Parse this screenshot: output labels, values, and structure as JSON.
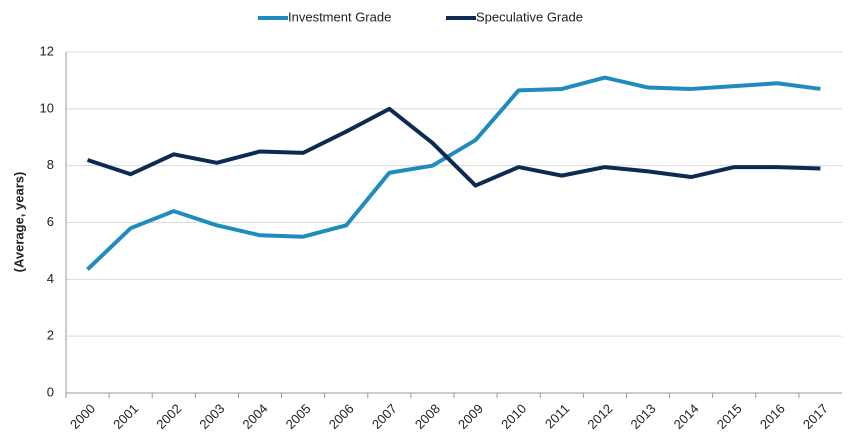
{
  "chart_data": {
    "type": "line",
    "y_label": "(Average, years)",
    "categories": [
      "2000",
      "2001",
      "2002",
      "2003",
      "2004",
      "2005",
      "2006",
      "2007",
      "2008",
      "2009",
      "2010",
      "2011",
      "2012",
      "2013",
      "2014",
      "2015",
      "2016",
      "2017"
    ],
    "series": [
      {
        "name": "Investment Grade",
        "color": "#1f8cbd",
        "values": [
          4.35,
          5.8,
          6.4,
          5.9,
          5.55,
          5.5,
          5.9,
          7.75,
          8.0,
          8.9,
          10.65,
          10.7,
          11.1,
          10.75,
          10.7,
          10.8,
          10.9,
          10.7
        ]
      },
      {
        "name": "Speculative Grade",
        "color": "#0c2a52",
        "values": [
          8.2,
          7.7,
          8.4,
          8.1,
          8.5,
          8.45,
          9.2,
          10.0,
          8.8,
          7.3,
          7.95,
          7.65,
          7.95,
          7.8,
          7.6,
          7.95,
          7.95,
          7.9
        ]
      }
    ],
    "ylim": [
      0,
      12
    ],
    "yticks": [
      0,
      2,
      4,
      6,
      8,
      10,
      12
    ],
    "grid": true,
    "legend": "top"
  }
}
